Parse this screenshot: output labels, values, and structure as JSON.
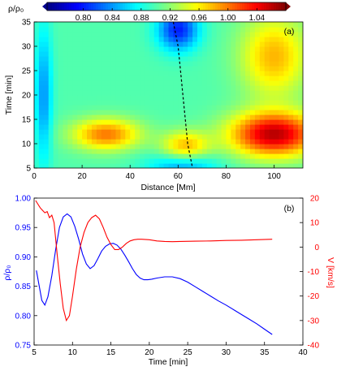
{
  "chart_data": [
    {
      "type": "heatmap",
      "panel_label": "(a)",
      "colorbar": {
        "label": "ρ/ρ₀",
        "range": [
          0.75,
          1.08
        ],
        "ticks": [
          "0.80",
          "0.84",
          "0.88",
          "0.92",
          "0.96",
          "1.00",
          "1.04"
        ],
        "tick_values": [
          0.8,
          0.84,
          0.88,
          0.92,
          0.96,
          1.0,
          1.04
        ],
        "colormap": "jet"
      },
      "xlabel": "Distance [Mm]",
      "ylabel": "Time [min]",
      "xlim": [
        0,
        112
      ],
      "ylim": [
        5,
        35
      ],
      "x_ticks": [
        0,
        20,
        40,
        60,
        80,
        100
      ],
      "y_ticks": [
        5,
        10,
        15,
        20,
        25,
        30,
        35
      ],
      "features": [
        {
          "kind": "high-density",
          "x": 100,
          "y": 12,
          "sx": 13,
          "sy": 3.2,
          "value": 1.06
        },
        {
          "kind": "high-density",
          "x": 100,
          "y": 28,
          "sx": 10,
          "sy": 6,
          "value": 0.98
        },
        {
          "kind": "high-density",
          "x": 30,
          "y": 12,
          "sx": 10,
          "sy": 2.3,
          "value": 1.0
        },
        {
          "kind": "high-density",
          "x": 63,
          "y": 9.5,
          "sx": 7,
          "sy": 2.2,
          "value": 0.98
        },
        {
          "kind": "low-density",
          "x": 60,
          "y": 33.5,
          "sx": 6,
          "sy": 3,
          "value": 0.8
        },
        {
          "kind": "low-density",
          "x": 62,
          "y": 5.5,
          "sx": 10,
          "sy": 2,
          "value": 0.84
        },
        {
          "kind": "low-density",
          "x": 4,
          "y": 20,
          "sx": 2.5,
          "sy": 10,
          "value": 0.84
        }
      ],
      "track": {
        "style": "dashed",
        "x": [
          58,
          60,
          61,
          62,
          63,
          64,
          66
        ],
        "y": [
          35,
          30,
          25,
          20,
          15,
          10,
          5
        ]
      }
    },
    {
      "type": "line",
      "panel_label": "(b)",
      "xlabel": "Time [min]",
      "xlim": [
        5,
        40
      ],
      "x_ticks": [
        5,
        10,
        15,
        20,
        25,
        30,
        35,
        40
      ],
      "left_axis": {
        "label": "ρ/ρ₀",
        "color": "#0000ff",
        "ylim": [
          0.75,
          1.0
        ],
        "ticks": [
          "0.75",
          "0.80",
          "0.85",
          "0.90",
          "0.95",
          "1.00"
        ],
        "tick_values": [
          0.75,
          0.8,
          0.85,
          0.9,
          0.95,
          1.0
        ]
      },
      "right_axis": {
        "label": "V [km/s]",
        "color": "#ff0000",
        "ylim": [
          -40,
          20
        ],
        "ticks": [
          "20",
          "10",
          "0",
          "-10",
          "-20",
          "-30",
          "-40"
        ],
        "tick_values": [
          20,
          10,
          0,
          -10,
          -20,
          -30,
          -40
        ]
      },
      "series": [
        {
          "axis": "left",
          "color": "#0000ff",
          "x": [
            5.3,
            5.7,
            6.0,
            6.4,
            6.8,
            7.3,
            7.8,
            8.3,
            8.8,
            9.3,
            9.8,
            10.3,
            10.8,
            11.3,
            11.8,
            12.3,
            12.8,
            13.3,
            13.8,
            14.3,
            14.8,
            15.3,
            15.8,
            16.3,
            16.8,
            17.3,
            17.8,
            18.3,
            18.8,
            19.3,
            19.8,
            20.3,
            21.0,
            22.0,
            23.0,
            24.0,
            25.0,
            26.0,
            27.0,
            28.0,
            29.0,
            30.0,
            31.0,
            32.0,
            33.0,
            34.0,
            35.0,
            36.0
          ],
          "y": [
            0.877,
            0.848,
            0.826,
            0.818,
            0.832,
            0.868,
            0.912,
            0.95,
            0.968,
            0.973,
            0.968,
            0.952,
            0.93,
            0.905,
            0.888,
            0.88,
            0.885,
            0.897,
            0.91,
            0.918,
            0.922,
            0.923,
            0.92,
            0.913,
            0.903,
            0.892,
            0.88,
            0.87,
            0.864,
            0.861,
            0.861,
            0.862,
            0.864,
            0.866,
            0.866,
            0.863,
            0.857,
            0.849,
            0.841,
            0.833,
            0.825,
            0.818,
            0.81,
            0.802,
            0.794,
            0.786,
            0.777,
            0.768
          ]
        },
        {
          "axis": "right",
          "color": "#ff0000",
          "x": [
            5.2,
            5.5,
            5.8,
            6.1,
            6.4,
            6.7,
            7.0,
            7.3,
            7.6,
            8.0,
            8.4,
            8.8,
            9.2,
            9.6,
            10.0,
            10.5,
            11.0,
            11.5,
            12.0,
            12.5,
            13.0,
            13.5,
            14.0,
            14.5,
            15.0,
            15.5,
            16.0,
            16.5,
            17.0,
            17.5,
            18.0,
            18.5,
            19.0,
            20.0,
            21.0,
            22.0,
            23.0,
            24.0,
            26.0,
            28.0,
            30.0,
            32.0,
            34.0,
            36.0
          ],
          "y": [
            19.0,
            17.5,
            16.0,
            15.0,
            14.0,
            14.5,
            12.0,
            13.0,
            10.0,
            -3.0,
            -15.0,
            -25.0,
            -30.0,
            -28.0,
            -20.0,
            -9.0,
            0.0,
            6.0,
            10.0,
            12.0,
            13.0,
            11.5,
            8.0,
            4.0,
            1.0,
            -1.0,
            -1.0,
            0.0,
            1.5,
            2.5,
            3.0,
            3.2,
            3.2,
            3.0,
            2.5,
            2.3,
            2.2,
            2.3,
            2.4,
            2.5,
            2.7,
            2.8,
            3.0,
            3.2
          ]
        }
      ]
    }
  ]
}
